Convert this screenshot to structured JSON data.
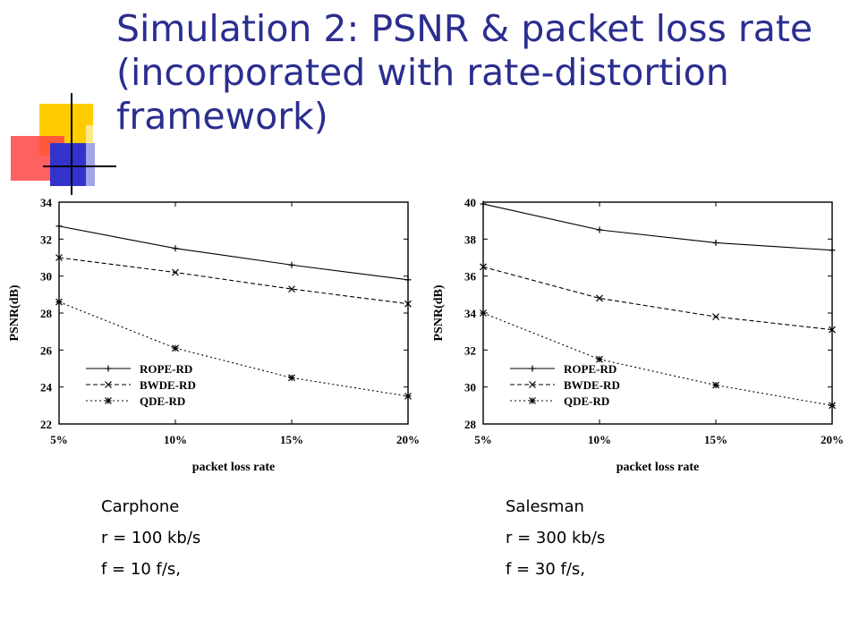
{
  "slide": {
    "title": "Simulation 2: PSNR & packet loss rate (incorporated with rate-distortion framework)"
  },
  "colors": {
    "title": "#2b2e8f",
    "deco_yellow": "#ffcc00",
    "deco_red": "#ff3333",
    "deco_blue": "#3333cc",
    "plot_line": "#000000"
  },
  "captions": [
    {
      "name": "Carphone",
      "rate": "r = 100 kb/s",
      "fps": "f = 10 f/s,"
    },
    {
      "name": "Salesman",
      "rate": "r = 300 kb/s",
      "fps": "f = 30 f/s,"
    }
  ],
  "chart_data": [
    {
      "type": "line",
      "xlabel": "packet loss rate",
      "ylabel": "PSNR(dB)",
      "x": [
        "5%",
        "10%",
        "15%",
        "20%"
      ],
      "xlim": [
        5,
        20
      ],
      "ylim": [
        22,
        34
      ],
      "yticks": [
        "22",
        "24",
        "26",
        "28",
        "30",
        "32",
        "34"
      ],
      "legend_position": "bottom-left",
      "series": [
        {
          "name": "ROPE-RD",
          "marker": "plus",
          "dash": "solid",
          "values": [
            32.7,
            31.5,
            30.6,
            29.8
          ]
        },
        {
          "name": "BWDE-RD",
          "marker": "cross",
          "dash": "dashed",
          "values": [
            31.0,
            30.2,
            29.3,
            28.5
          ]
        },
        {
          "name": "QDE-RD",
          "marker": "star",
          "dash": "dotted",
          "values": [
            28.6,
            26.1,
            24.5,
            23.5
          ]
        }
      ]
    },
    {
      "type": "line",
      "xlabel": "packet loss rate",
      "ylabel": "PSNR(dB)",
      "x": [
        "5%",
        "10%",
        "15%",
        "20%"
      ],
      "xlim": [
        5,
        20
      ],
      "ylim": [
        28,
        40
      ],
      "yticks": [
        "28",
        "30",
        "32",
        "34",
        "36",
        "38",
        "40"
      ],
      "legend_position": "bottom-left",
      "series": [
        {
          "name": "ROPE-RD",
          "marker": "plus",
          "dash": "solid",
          "values": [
            39.9,
            38.5,
            37.8,
            37.4
          ]
        },
        {
          "name": "BWDE-RD",
          "marker": "cross",
          "dash": "dashed",
          "values": [
            36.5,
            34.8,
            33.8,
            33.1
          ]
        },
        {
          "name": "QDE-RD",
          "marker": "star",
          "dash": "dotted",
          "values": [
            34.0,
            31.5,
            30.1,
            29.0
          ]
        }
      ]
    }
  ]
}
